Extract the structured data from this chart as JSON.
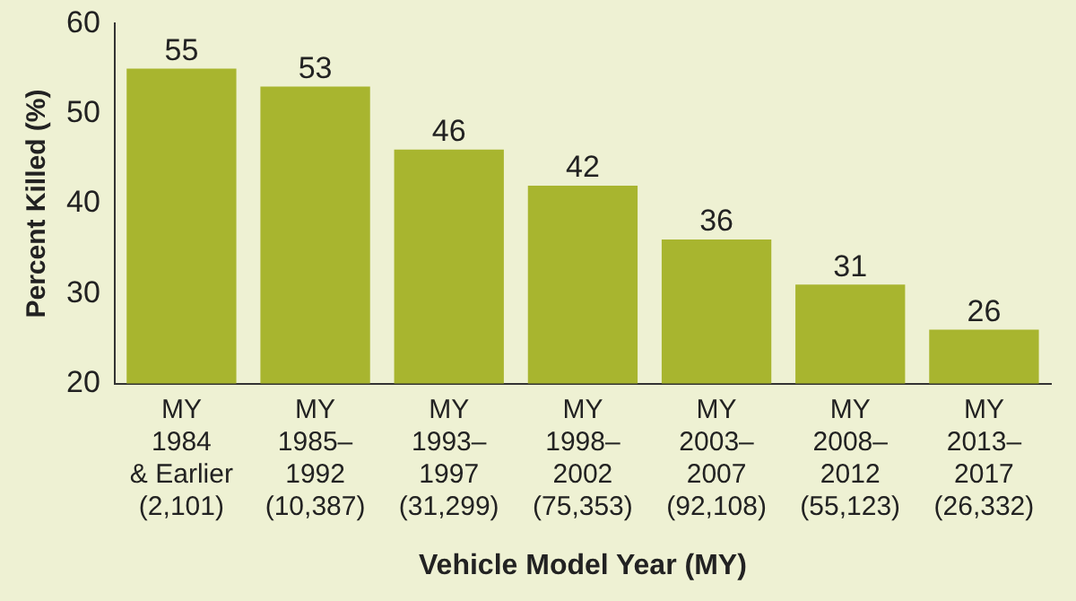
{
  "chart_data": {
    "type": "bar",
    "xlabel": "Vehicle Model Year (MY)",
    "ylabel": "Percent Killed (%)",
    "categories": [
      "MY\n1984\n& Earlier\n(2,101)",
      "MY\n1985–\n1992\n(10,387)",
      "MY\n1993–\n1997\n(31,299)",
      "MY\n1998–\n2002\n(75,353)",
      "MY\n2003–\n2007\n(92,108)",
      "MY\n2008–\n2012\n(55,123)",
      "MY\n2013–\n2017\n(26,332)"
    ],
    "values": [
      55,
      53,
      46,
      42,
      36,
      31,
      26
    ],
    "color": "#a8b52f",
    "ylim": [
      20,
      60
    ],
    "yticks": [
      20,
      30,
      40,
      50,
      60
    ],
    "grid": false,
    "data_labels": true,
    "legend": false
  }
}
